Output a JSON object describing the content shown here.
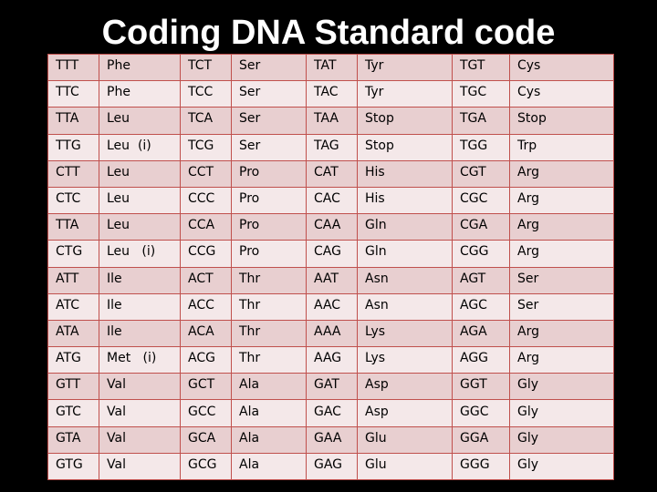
{
  "title": "Coding DNA Standard code",
  "rows": [
    [
      "TTT",
      "Phe",
      "TCT",
      "Ser",
      "TAT",
      "Tyr",
      "TGT",
      "Cys"
    ],
    [
      "TTC",
      "Phe",
      "TCC",
      "Ser",
      "TAC",
      "Tyr",
      "TGC",
      "Cys"
    ],
    [
      "TTA",
      "Leu",
      "TCA",
      "Ser",
      "TAA",
      "Stop",
      "TGA",
      "Stop"
    ],
    [
      "TTG",
      "Leu  (i)",
      "TCG",
      "Ser",
      "TAG",
      "Stop",
      "TGG",
      "Trp"
    ],
    [
      "CTT",
      "Leu",
      "CCT",
      "Pro",
      "CAT",
      "His",
      "CGT",
      "Arg"
    ],
    [
      "CTC",
      "Leu",
      "CCC",
      "Pro",
      "CAC",
      "His",
      "CGC",
      "Arg"
    ],
    [
      "TTA",
      "Leu",
      "CCA",
      "Pro",
      "CAA",
      "Gln",
      "CGA",
      "Arg"
    ],
    [
      "CTG",
      "Leu   (i)",
      "CCG",
      "Pro",
      "CAG",
      "Gln",
      "CGG",
      "Arg"
    ],
    [
      "ATT",
      "Ile",
      "ACT",
      "Thr",
      "AAT",
      "Asn",
      "AGT",
      "Ser"
    ],
    [
      "ATC",
      "Ile",
      "ACC",
      "Thr",
      "AAC",
      "Asn",
      "AGC",
      "Ser"
    ],
    [
      "ATA",
      "Ile",
      "ACA",
      "Thr",
      "AAA",
      "Lys",
      "AGA",
      "Arg"
    ],
    [
      "ATG",
      "Met   (i)",
      "ACG",
      "Thr",
      "AAG",
      "Lys",
      "AGG",
      "Arg"
    ],
    [
      "GTT",
      "Val",
      "GCT",
      "Ala",
      "GAT",
      "Asp",
      "GGT",
      "Gly"
    ],
    [
      "GTC",
      "Val",
      "GCC",
      "Ala",
      "GAC",
      "Asp",
      "GGC",
      "Gly"
    ],
    [
      "GTA",
      "Val",
      "GCA",
      "Ala",
      "GAA",
      "Glu",
      "GGA",
      "Gly"
    ],
    [
      "GTG",
      "Val",
      "GCG",
      "Ala",
      "GAG",
      "Glu",
      "GGG",
      "Gly"
    ]
  ],
  "colors": {
    "background": "#000000",
    "title": "#ffffff",
    "border": "#c0504d",
    "row_odd": "#e8cfd0",
    "row_even": "#f4e8e9"
  }
}
